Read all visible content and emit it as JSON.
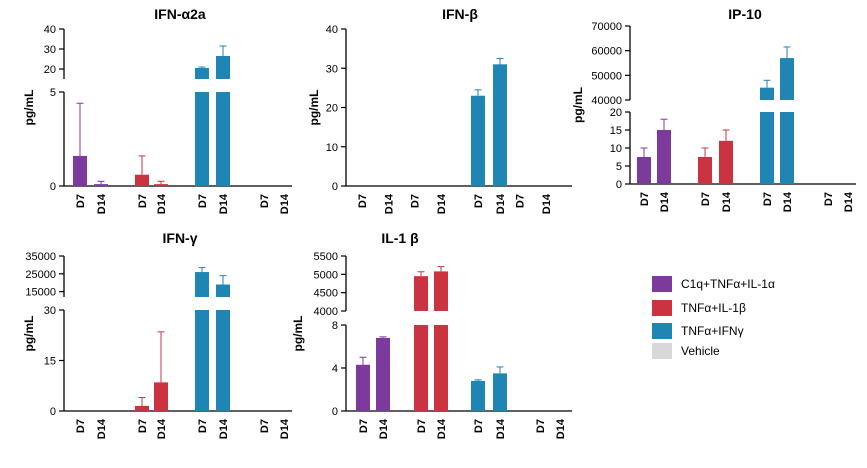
{
  "legend": [
    {
      "label": "C1q+TNFα+IL-1α",
      "color": "#7b3a9c"
    },
    {
      "label": "TNFα+IL-1β",
      "color": "#cc3340"
    },
    {
      "label": "TNFα+IFNγ",
      "color": "#1f86b4"
    },
    {
      "label": "Vehicle",
      "color": "#d8d8d8"
    }
  ],
  "chart_data": [
    {
      "type": "bar",
      "title": "IFN-α2a",
      "ylabel": "pg/mL",
      "categories": [
        "D7",
        "D14",
        "D7",
        "D14",
        "D7",
        "D14",
        "D7",
        "D14"
      ],
      "group_series": [
        "C1q+TNFα+IL-1α",
        "C1q+TNFα+IL-1α",
        "TNFα+IL-1β",
        "TNFα+IL-1β",
        "TNFα+IFNγ",
        "TNFα+IFNγ",
        "Vehicle",
        "Vehicle"
      ],
      "values": [
        1.6,
        0.1,
        0.6,
        0.1,
        20.5,
        26.5,
        0,
        0
      ],
      "errors": [
        2.8,
        0.15,
        1.0,
        0.15,
        0.5,
        5.0,
        0,
        0
      ],
      "broken_axis": true,
      "lower_ylim": [
        0,
        5
      ],
      "lower_ticks": [
        "0",
        "5"
      ],
      "upper_ylim": [
        15,
        40
      ],
      "upper_ticks": [
        "20",
        "30",
        "40"
      ]
    },
    {
      "type": "bar",
      "title": "IFN-β",
      "ylabel": "pg/mL",
      "categories": [
        "D7",
        "D14",
        "D7",
        "D14",
        "D7",
        "D14",
        "D7",
        "D14"
      ],
      "group_series": [
        "C1q+TNFα+IL-1α",
        "C1q+TNFα+IL-1α",
        "TNFα+IL-1β",
        "TNFα+IL-1β",
        "TNFα+IFNγ",
        "TNFα+IFNγ",
        "Vehicle",
        "Vehicle"
      ],
      "values": [
        0,
        0,
        0,
        0,
        23,
        31,
        0,
        0
      ],
      "errors": [
        0,
        0,
        0,
        0,
        1.5,
        1.5,
        0,
        0
      ],
      "broken_axis": false,
      "ylim": [
        0,
        40
      ],
      "ticks": [
        "0",
        "10",
        "20",
        "30",
        "40"
      ]
    },
    {
      "type": "bar",
      "title": "IP-10",
      "ylabel": "pg/mL",
      "categories": [
        "D7",
        "D14",
        "D7",
        "D14",
        "D7",
        "D14",
        "D7",
        "D14"
      ],
      "group_series": [
        "C1q+TNFα+IL-1α",
        "C1q+TNFα+IL-1α",
        "TNFα+IL-1β",
        "TNFα+IL-1β",
        "TNFα+IFNγ",
        "TNFα+IFNγ",
        "Vehicle",
        "Vehicle"
      ],
      "values": [
        7.5,
        15,
        7.5,
        12,
        45000,
        57000,
        0,
        0
      ],
      "errors": [
        2.5,
        3,
        2.5,
        3,
        3000,
        4500,
        0,
        0
      ],
      "broken_axis": true,
      "lower_ylim": [
        0,
        20
      ],
      "lower_ticks": [
        "0",
        "5",
        "10",
        "15",
        "20"
      ],
      "upper_ylim": [
        40000,
        70000
      ],
      "upper_ticks": [
        "40000",
        "50000",
        "60000",
        "70000"
      ]
    },
    {
      "type": "bar",
      "title": "IFN-γ",
      "ylabel": "pg/mL",
      "categories": [
        "D7",
        "D14",
        "D7",
        "D14",
        "D7",
        "D14",
        "D7",
        "D14"
      ],
      "group_series": [
        "C1q+TNFα+IL-1α",
        "C1q+TNFα+IL-1α",
        "TNFα+IL-1β",
        "TNFα+IL-1β",
        "TNFα+IFNγ",
        "TNFα+IFNγ",
        "Vehicle",
        "Vehicle"
      ],
      "values": [
        0,
        0,
        1.5,
        8.5,
        26000,
        19000,
        0,
        0
      ],
      "errors": [
        0,
        0,
        2.5,
        15,
        2500,
        5000,
        0,
        0
      ],
      "broken_axis": true,
      "lower_ylim": [
        0,
        30
      ],
      "lower_ticks": [
        "0",
        "15",
        "30"
      ],
      "upper_ylim": [
        12000,
        35000
      ],
      "upper_ticks": [
        "15000",
        "25000",
        "35000"
      ]
    },
    {
      "type": "bar",
      "title": "IL-1 β",
      "ylabel": "pg/mL",
      "categories": [
        "D7",
        "D14",
        "D7",
        "D14",
        "D7",
        "D14",
        "D7",
        "D14"
      ],
      "group_series": [
        "C1q+TNFα+IL-1α",
        "C1q+TNFα+IL-1α",
        "TNFα+IL-1β",
        "TNFα+IL-1β",
        "TNFα+IFNγ",
        "TNFα+IFNγ",
        "Vehicle",
        "Vehicle"
      ],
      "values": [
        4.3,
        6.8,
        4950,
        5080,
        2.8,
        3.5,
        0,
        0
      ],
      "errors": [
        0.7,
        0.1,
        120,
        130,
        0.1,
        0.6,
        0,
        0
      ],
      "broken_axis": true,
      "lower_ylim": [
        0,
        8
      ],
      "lower_ticks": [
        "0",
        "4",
        "8"
      ],
      "upper_ylim": [
        4000,
        5500
      ],
      "upper_ticks": [
        "4000",
        "4500",
        "5000",
        "5500"
      ]
    }
  ]
}
